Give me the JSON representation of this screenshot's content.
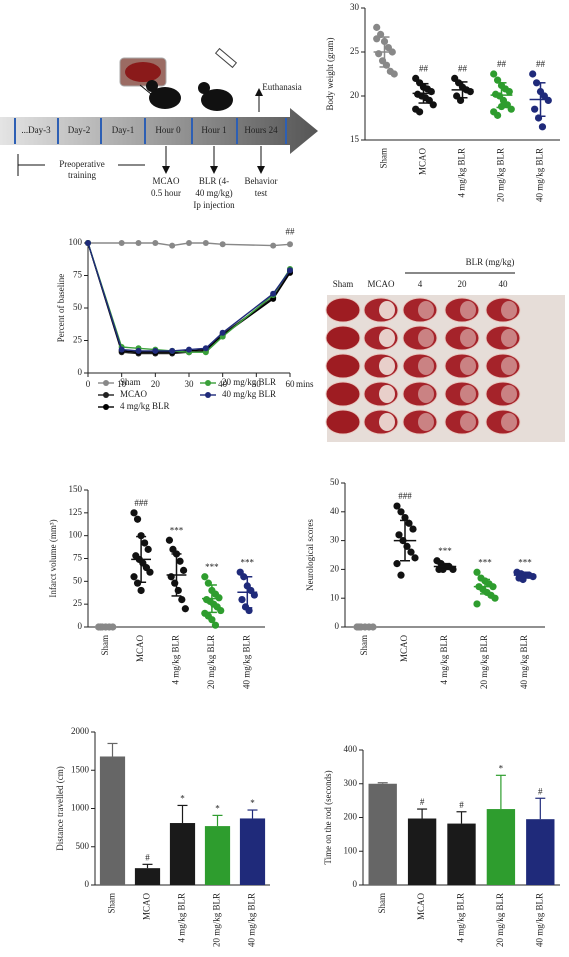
{
  "timeline": {
    "steps": [
      "...Day-3",
      "Day-2",
      "Day-1",
      "Hour 0",
      "Hour 1",
      "Hours 24"
    ],
    "euthanasia": "Euthanasia",
    "training": [
      "Preoperative",
      "training"
    ],
    "events": [
      [
        "MCAO",
        "0.5 hour"
      ],
      [
        "BLR (4-",
        "40 mg/kg)",
        "Ip injection"
      ],
      [
        "Behavior",
        "test"
      ]
    ]
  },
  "image_panel": {
    "header": "BLR (mg/kg)",
    "columns": [
      "Sham",
      "MCAO",
      "4",
      "20",
      "40"
    ]
  },
  "chart_data": [
    {
      "type": "dot",
      "y_label": "Body weight (gram)",
      "categories": [
        "Sham",
        "MCAO",
        "4 mg/kg BLR",
        "20 mg/kg BLR",
        "40 mg/kg BLR"
      ],
      "colors": [
        "#888888",
        "#111111",
        "#111111",
        "#2e9d2e",
        "#1f2a7a"
      ],
      "points": [
        [
          27.8,
          27,
          26.2,
          25.5,
          25,
          24.8,
          24,
          23.5,
          22.8,
          22.5,
          26.5
        ],
        [
          22,
          21.5,
          21,
          20.8,
          20.5,
          20.2,
          20,
          19.8,
          19.5,
          19,
          18.5,
          18.2
        ],
        [
          22,
          21.5,
          21,
          20.7,
          20.5,
          20,
          19.5
        ],
        [
          22.5,
          21.8,
          21.2,
          20.8,
          20.5,
          20.2,
          20,
          19.5,
          19,
          18.5,
          18.2,
          17.8,
          18.8
        ],
        [
          22.5,
          21.5,
          20.5,
          20,
          19.5,
          18.5,
          17.5,
          16.5
        ]
      ],
      "means": [
        25,
        20.3,
        20.7,
        20.1,
        19.6
      ],
      "sds": [
        1.7,
        1.1,
        0.9,
        1.4,
        1.9
      ],
      "annotations": [
        null,
        "##",
        "##",
        "##",
        "##"
      ],
      "ylim": [
        15,
        30
      ],
      "yticks": [
        15,
        20,
        25,
        30
      ]
    },
    {
      "type": "line",
      "y_label": "Percent of baseline",
      "x_label": "mins",
      "x": [
        0,
        10,
        15,
        20,
        25,
        30,
        35,
        40,
        55,
        60
      ],
      "xlim": [
        0,
        60
      ],
      "xticks": [
        0,
        10,
        20,
        30,
        40,
        50,
        60
      ],
      "ylim": [
        0,
        100
      ],
      "yticks": [
        0,
        25,
        50,
        75,
        100
      ],
      "annotation": "##",
      "series": [
        {
          "name": "Sham",
          "color": "#888888",
          "values": [
            100,
            100,
            100,
            100,
            98,
            100,
            100,
            99,
            98,
            99
          ]
        },
        {
          "name": "MCAO",
          "color": "#222222",
          "values": [
            100,
            16,
            15,
            15,
            15,
            16,
            17,
            30,
            58,
            78
          ]
        },
        {
          "name": "4 mg/kg BLR",
          "color": "#000000",
          "values": [
            100,
            17,
            16,
            16,
            16,
            17,
            18,
            29,
            57,
            77
          ]
        },
        {
          "name": "20 mg/kg BLR",
          "color": "#3aa03a",
          "values": [
            100,
            20,
            19,
            18,
            17,
            16,
            16,
            28,
            60,
            80
          ]
        },
        {
          "name": "40 mg/kg BLR",
          "color": "#1f2a7a",
          "values": [
            100,
            18,
            17,
            17,
            17,
            18,
            19,
            31,
            61,
            79
          ]
        }
      ]
    },
    {
      "type": "dot",
      "y_label": "Infarct volume (mm³)",
      "categories": [
        "Sham",
        "MCAO",
        "4 mg/kg BLR",
        "20 mg/kg BLR",
        "40 mg/kg BLR"
      ],
      "colors": [
        "#888888",
        "#111111",
        "#111111",
        "#2e9d2e",
        "#1f2a7a"
      ],
      "points": [
        [
          0,
          0,
          0,
          0,
          0,
          0
        ],
        [
          125,
          118,
          100,
          92,
          85,
          78,
          74,
          70,
          65,
          60,
          55,
          48,
          40
        ],
        [
          95,
          85,
          80,
          72,
          62,
          55,
          48,
          40,
          30,
          20
        ],
        [
          55,
          48,
          40,
          36,
          32,
          30,
          28,
          25,
          22,
          18,
          15,
          12,
          8,
          2
        ],
        [
          60,
          55,
          45,
          40,
          35,
          30,
          22,
          18
        ]
      ],
      "means": [
        0,
        74,
        57,
        31,
        38
      ],
      "sds": [
        0,
        25,
        23,
        15,
        17
      ],
      "annotations": [
        null,
        "###",
        "***",
        "***",
        "***"
      ],
      "ylim": [
        0,
        150
      ],
      "yticks": [
        0,
        25,
        50,
        75,
        100,
        125,
        150
      ]
    },
    {
      "type": "dot",
      "y_label": "Neurological scores",
      "categories": [
        "Sham",
        "MCAO",
        "4 mg/kg BLR",
        "20 mg/kg BLR",
        "40 mg/kg BLR"
      ],
      "colors": [
        "#888888",
        "#111111",
        "#111111",
        "#2e9d2e",
        "#1f2a7a"
      ],
      "points": [
        [
          0,
          0,
          0,
          0,
          0,
          0
        ],
        [
          42,
          40,
          38,
          36,
          34,
          32,
          30,
          28,
          26,
          24,
          22,
          18
        ],
        [
          23,
          22,
          21,
          21,
          20,
          20,
          20
        ],
        [
          19,
          17,
          16,
          15,
          14,
          14,
          13,
          12,
          11,
          10,
          8
        ],
        [
          19,
          18.5,
          18,
          18,
          17.5,
          17,
          16.5
        ]
      ],
      "means": [
        0,
        30,
        21,
        14,
        18
      ],
      "sds": [
        0,
        7,
        1,
        2.5,
        1
      ],
      "annotations": [
        null,
        "###",
        "***",
        "***",
        "***"
      ],
      "ylim": [
        0,
        50
      ],
      "yticks": [
        0,
        10,
        20,
        30,
        40,
        50
      ]
    },
    {
      "type": "bar",
      "y_label": "Distance travelled (cm)",
      "categories": [
        "Sham",
        "MCAO",
        "4 mg/kg BLR",
        "20 mg/kg BLR",
        "40 mg/kg BLR"
      ],
      "colors": [
        "#666666",
        "#1a1a1a",
        "#1a1a1a",
        "#2e9d2e",
        "#1f2a7a"
      ],
      "values": [
        1680,
        220,
        810,
        770,
        870
      ],
      "errors": [
        170,
        50,
        230,
        140,
        110
      ],
      "annotations": [
        null,
        "#",
        "*",
        "*",
        "*"
      ],
      "ylim": [
        0,
        2000
      ],
      "yticks": [
        0,
        500,
        1000,
        1500,
        2000
      ]
    },
    {
      "type": "bar",
      "y_label": "Time on the rod (seconds)",
      "categories": [
        "Sham",
        "MCAO",
        "4 mg/kg BLR",
        "20 mg/kg BLR",
        "40 mg/kg BLR"
      ],
      "colors": [
        "#666666",
        "#1a1a1a",
        "#1a1a1a",
        "#2e9d2e",
        "#1f2a7a"
      ],
      "values": [
        300,
        197,
        182,
        225,
        195
      ],
      "errors": [
        3,
        28,
        35,
        100,
        62
      ],
      "annotations": [
        null,
        "#",
        "#",
        "*",
        "#"
      ],
      "ylim": [
        0,
        400
      ],
      "yticks": [
        0,
        100,
        200,
        300,
        400
      ]
    }
  ]
}
